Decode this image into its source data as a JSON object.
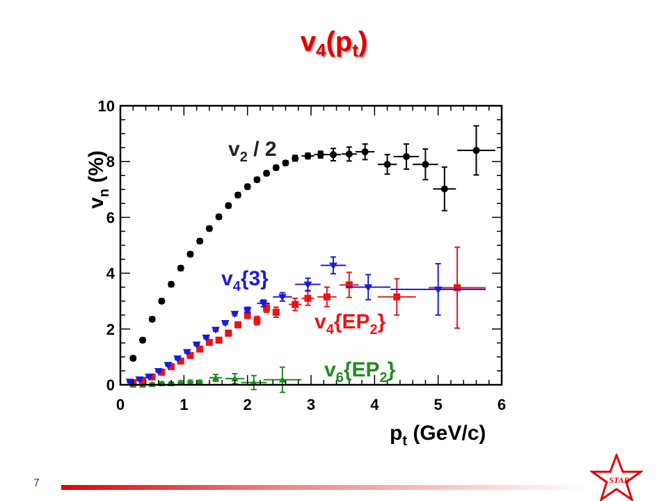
{
  "slide": {
    "title_base": "v",
    "title_sub1": "4",
    "title_mid": "(p",
    "title_sub2": "t",
    "title_end": ")",
    "page_number": "7",
    "logo_text": "STAR",
    "accent_color": "#e00000"
  },
  "chart_data": {
    "type": "scatter",
    "title": "",
    "xlim": [
      0,
      6
    ],
    "ylim": [
      0,
      10
    ],
    "x_ticks": [
      0,
      1,
      2,
      3,
      4,
      5,
      6
    ],
    "y_ticks": [
      0,
      2,
      4,
      6,
      8,
      10
    ],
    "x_tick_labels": [
      "0",
      "1",
      "2",
      "3",
      "4",
      "5",
      "6"
    ],
    "y_tick_labels": [
      "0",
      "2",
      "4",
      "6",
      "8",
      "10"
    ],
    "xlabel": {
      "main": "p",
      "sub": "t",
      "rest": " (GeV/c)"
    },
    "ylabel": {
      "main": "v",
      "sub": "n",
      "rest": " (%)"
    },
    "grid": false,
    "series": [
      {
        "label": {
          "main": "v",
          "sub": "2",
          "rest": " / 2"
        },
        "color": "#000000",
        "marker": "circle",
        "points": [
          [
            0.2,
            0.95,
            0.05,
            0.08
          ],
          [
            0.35,
            1.6,
            0.05,
            0.08
          ],
          [
            0.5,
            2.35,
            0.05,
            0.08
          ],
          [
            0.65,
            3.0,
            0.05,
            0.08
          ],
          [
            0.8,
            3.6,
            0.05,
            0.08
          ],
          [
            0.95,
            4.18,
            0.05,
            0.08
          ],
          [
            1.1,
            4.68,
            0.05,
            0.08
          ],
          [
            1.25,
            5.15,
            0.05,
            0.08
          ],
          [
            1.4,
            5.6,
            0.05,
            0.08
          ],
          [
            1.55,
            6.02,
            0.05,
            0.08
          ],
          [
            1.7,
            6.42,
            0.05,
            0.08
          ],
          [
            1.85,
            6.8,
            0.05,
            0.08
          ],
          [
            2.0,
            7.1,
            0.05,
            0.08
          ],
          [
            2.15,
            7.35,
            0.05,
            0.08
          ],
          [
            2.3,
            7.58,
            0.05,
            0.08
          ],
          [
            2.45,
            7.78,
            0.05,
            0.08
          ],
          [
            2.6,
            7.95,
            0.05,
            0.08
          ],
          [
            2.75,
            8.12,
            0.05,
            0.1
          ],
          [
            2.95,
            8.2,
            0.1,
            0.1
          ],
          [
            3.15,
            8.25,
            0.1,
            0.12
          ],
          [
            3.35,
            8.25,
            0.12,
            0.22
          ],
          [
            3.6,
            8.27,
            0.12,
            0.25
          ],
          [
            3.85,
            8.35,
            0.15,
            0.28
          ],
          [
            4.2,
            7.9,
            0.15,
            0.35
          ],
          [
            4.5,
            8.18,
            0.2,
            0.45
          ],
          [
            4.8,
            7.9,
            0.2,
            0.55
          ],
          [
            5.1,
            7.02,
            0.18,
            0.78
          ],
          [
            5.6,
            8.4,
            0.3,
            0.88
          ]
        ]
      },
      {
        "label": {
          "main": "v",
          "sub": "4",
          "rest": "{3}"
        },
        "color": "#1a1adc",
        "marker": "triangle-down",
        "points": [
          [
            0.15,
            0.12,
            0.05,
            0.05
          ],
          [
            0.3,
            0.2,
            0.05,
            0.05
          ],
          [
            0.45,
            0.3,
            0.05,
            0.05
          ],
          [
            0.6,
            0.5,
            0.05,
            0.05
          ],
          [
            0.75,
            0.72,
            0.05,
            0.05
          ],
          [
            0.9,
            0.95,
            0.05,
            0.05
          ],
          [
            1.05,
            1.18,
            0.05,
            0.05
          ],
          [
            1.2,
            1.45,
            0.05,
            0.05
          ],
          [
            1.35,
            1.7,
            0.05,
            0.05
          ],
          [
            1.5,
            1.98,
            0.05,
            0.06
          ],
          [
            1.65,
            2.22,
            0.05,
            0.06
          ],
          [
            1.8,
            2.55,
            0.05,
            0.07
          ],
          [
            2.0,
            2.68,
            0.05,
            0.1
          ],
          [
            2.25,
            2.92,
            0.1,
            0.12
          ],
          [
            2.55,
            3.15,
            0.15,
            0.15
          ],
          [
            2.95,
            3.6,
            0.2,
            0.22
          ],
          [
            3.35,
            4.28,
            0.2,
            0.3
          ],
          [
            3.9,
            3.5,
            0.35,
            0.45
          ],
          [
            5.0,
            3.42,
            0.75,
            0.92
          ]
        ]
      },
      {
        "label": {
          "main": "v",
          "sub": "4",
          "rest": "{EP",
          "sub2": "2",
          "rest2": "}"
        },
        "color": "#e81414",
        "marker": "square",
        "points": [
          [
            0.2,
            0.08,
            0.05,
            0.05
          ],
          [
            0.35,
            0.16,
            0.05,
            0.05
          ],
          [
            0.5,
            0.28,
            0.05,
            0.05
          ],
          [
            0.65,
            0.45,
            0.05,
            0.05
          ],
          [
            0.8,
            0.65,
            0.05,
            0.05
          ],
          [
            0.95,
            0.85,
            0.05,
            0.05
          ],
          [
            1.1,
            1.05,
            0.05,
            0.05
          ],
          [
            1.25,
            1.28,
            0.05,
            0.06
          ],
          [
            1.4,
            1.52,
            0.05,
            0.07
          ],
          [
            1.55,
            1.6,
            0.05,
            0.08
          ],
          [
            1.7,
            1.85,
            0.05,
            0.1
          ],
          [
            1.85,
            2.15,
            0.05,
            0.1
          ],
          [
            2.0,
            2.5,
            0.05,
            0.12
          ],
          [
            2.15,
            2.3,
            0.05,
            0.15
          ],
          [
            2.3,
            2.75,
            0.05,
            0.15
          ],
          [
            2.45,
            2.6,
            0.05,
            0.18
          ],
          [
            2.75,
            2.88,
            0.1,
            0.22
          ],
          [
            2.95,
            3.1,
            0.1,
            0.25
          ],
          [
            3.25,
            3.15,
            0.15,
            0.35
          ],
          [
            3.6,
            3.58,
            0.15,
            0.45
          ],
          [
            4.35,
            3.15,
            0.3,
            0.65
          ],
          [
            5.3,
            3.48,
            0.45,
            1.45
          ]
        ]
      },
      {
        "label": {
          "main": "v",
          "sub": "6",
          "rest": "{EP",
          "sub2": "2",
          "rest2": "}"
        },
        "color": "#1e8c1e",
        "marker": "triangle-up",
        "points": [
          [
            0.2,
            0.0,
            0.05,
            0.05
          ],
          [
            0.35,
            0.0,
            0.05,
            0.05
          ],
          [
            0.5,
            0.02,
            0.05,
            0.05
          ],
          [
            0.65,
            0.05,
            0.05,
            0.05
          ],
          [
            0.8,
            0.05,
            0.05,
            0.05
          ],
          [
            0.95,
            0.08,
            0.05,
            0.06
          ],
          [
            1.1,
            0.1,
            0.05,
            0.06
          ],
          [
            1.25,
            0.1,
            0.05,
            0.06
          ],
          [
            1.5,
            0.25,
            0.1,
            0.12
          ],
          [
            1.8,
            0.22,
            0.15,
            0.18
          ],
          [
            2.1,
            0.08,
            0.2,
            0.25
          ],
          [
            2.55,
            0.18,
            0.3,
            0.45
          ]
        ]
      }
    ]
  }
}
